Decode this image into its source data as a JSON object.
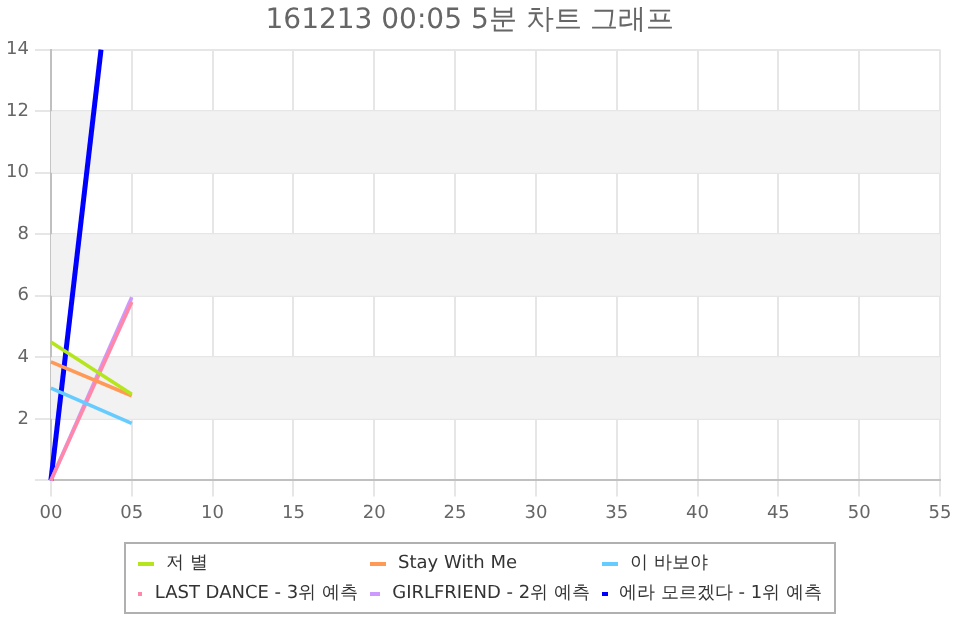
{
  "chart_data": {
    "type": "line",
    "title": "161213 00:05 5분 차트 그래프",
    "x": [
      0,
      5
    ],
    "xlim": [
      0,
      55
    ],
    "xticks": [
      {
        "value": 0,
        "label": "00"
      },
      {
        "value": 5,
        "label": "05"
      },
      10,
      15,
      20,
      25,
      30,
      35,
      40,
      45,
      50,
      55
    ],
    "ylim": [
      0,
      14
    ],
    "yticks": [
      {
        "value": 0,
        "label": null
      },
      2,
      4,
      6,
      8,
      10,
      12,
      14
    ],
    "grid": true,
    "legend": "bottom",
    "marker": "none",
    "line_style": "solid",
    "bands": [
      {
        "axis": "y",
        "from": 2,
        "to": 4,
        "color": "#f2f2f2"
      },
      {
        "axis": "y",
        "from": 6,
        "to": 8,
        "color": "#f2f2f2"
      },
      {
        "axis": "y",
        "from": 10,
        "to": 12,
        "color": "#f2f2f2"
      }
    ],
    "series": [
      {
        "name": "저 별",
        "color": "#b5e61d",
        "values": [
          4.5,
          2.8
        ]
      },
      {
        "name": "Stay With Me",
        "color": "#ff9955",
        "values": [
          3.85,
          2.75
        ]
      },
      {
        "name": "이 바보야",
        "color": "#66ccff",
        "values": [
          3.0,
          1.85
        ]
      },
      {
        "name": "LAST DANCE - 3위 예측",
        "color": "#ff88aa",
        "values": [
          0,
          5.8
        ]
      },
      {
        "name": "GIRLFRIEND - 2위 예측",
        "color": "#cc99ff",
        "values": [
          0,
          5.95
        ]
      },
      {
        "name": "에라 모르겠다 - 1위 예측",
        "color": "#0000ff",
        "x": [
          0,
          3.1
        ],
        "values": [
          0,
          14
        ]
      }
    ]
  }
}
